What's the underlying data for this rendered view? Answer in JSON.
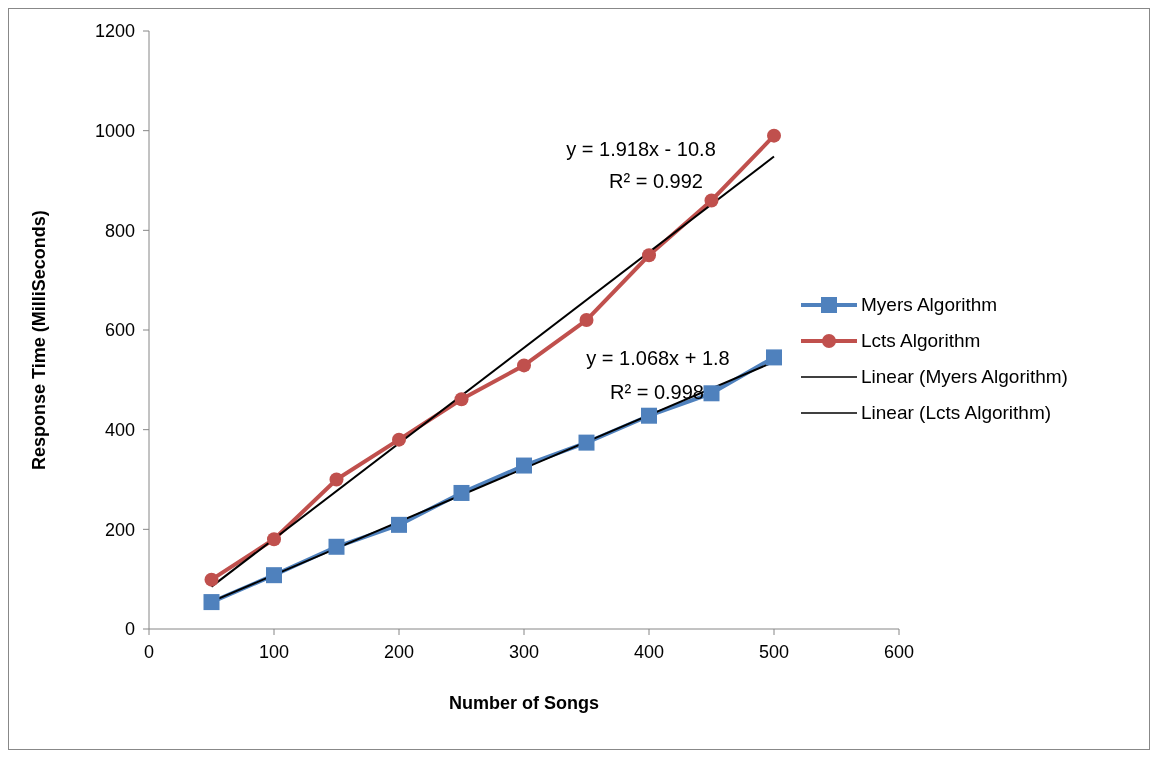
{
  "chart_data": {
    "type": "line",
    "xlabel": "Number of Songs",
    "ylabel": "Response Time (MilliSeconds)",
    "xlim": [
      0,
      600
    ],
    "xticks": [
      0,
      100,
      200,
      300,
      400,
      500,
      600
    ],
    "ylim": [
      0,
      1200
    ],
    "yticks": [
      0,
      200,
      400,
      600,
      800,
      1000,
      1200
    ],
    "grid": false,
    "legend": "right",
    "line_style": "solid",
    "series": [
      {
        "name": "Myers Algorithm",
        "color": "#4f81bd",
        "marker": "square",
        "x": [
          50,
          100,
          150,
          200,
          250,
          300,
          350,
          400,
          450,
          500
        ],
        "values": [
          54,
          108,
          165,
          209,
          273,
          328,
          374,
          428,
          473,
          545
        ]
      },
      {
        "name": "Lcts Algorithm",
        "color": "#c0504d",
        "marker": "circle",
        "x": [
          50,
          100,
          150,
          200,
          250,
          300,
          350,
          400,
          450,
          500
        ],
        "values": [
          99,
          180,
          300,
          380,
          461,
          529,
          620,
          750,
          860,
          990
        ]
      },
      {
        "name": "Linear (Myers Algorithm)",
        "color": "#000000",
        "marker": "none",
        "x": [
          50,
          500
        ],
        "values": [
          55,
          536
        ]
      },
      {
        "name": "Linear (Lcts Algorithm)",
        "color": "#000000",
        "marker": "none",
        "x": [
          50,
          500
        ],
        "values": [
          85,
          948
        ]
      }
    ],
    "annotations": [
      "y = 1.918x - 10.8",
      "R² = 0.992",
      "y = 1.068x + 1.8",
      "R² = 0.998"
    ]
  }
}
